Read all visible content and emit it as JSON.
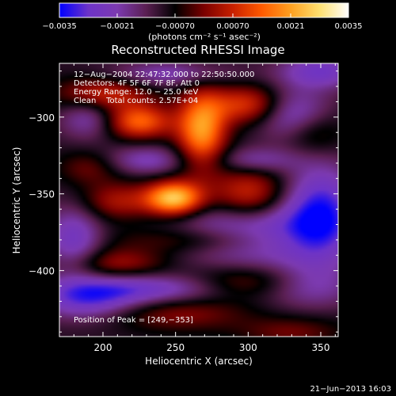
{
  "chart_data": {
    "type": "heatmap",
    "title": "Reconstructed RHESSI Image",
    "xlabel": "Heliocentric X (arcsec)",
    "ylabel": "Heliocentric Y (arcsec)",
    "xlim": [
      170,
      362
    ],
    "ylim": [
      -443,
      -265
    ],
    "x_ticks": [
      200,
      250,
      300,
      350
    ],
    "y_ticks": [
      -300,
      -350,
      -400
    ],
    "x_tick_labels": [
      "200",
      "250",
      "300",
      "350"
    ],
    "y_tick_labels": [
      "−300",
      "−350",
      "−400"
    ],
    "colorbar": {
      "range": [
        -0.0035,
        0.0035
      ],
      "ticks": [
        -0.0035,
        -0.0021,
        -0.0007,
        0.0007,
        0.0021,
        0.0035
      ],
      "tick_labels": [
        "−0.0035",
        "−0.0021",
        "−0.00070",
        "0.00070",
        "0.0021",
        "0.0035"
      ],
      "unit": "(photons cm⁻² s⁻¹ asec⁻²)",
      "colormap": [
        "#0000ff",
        "#6d33c8",
        "#7c3ab0",
        "#5a1f52",
        "#000000",
        "#7a0000",
        "#c82000",
        "#ff5a00",
        "#ffa020",
        "#ffe070",
        "#ffffff"
      ]
    },
    "annotations": [
      "12−Aug−2004 22:47:32.000 to 22:50:50.000",
      "Detectors: 4F 5F 6F 7F 8F, Att 0",
      "Energy Range: 12.0 − 25.0 keV",
      "Clean    Total counts: 2.57E+04"
    ],
    "peak_label": "Position of Peak = [249,−353]",
    "peak": [
      249,
      -353
    ],
    "timestamp": "21−Jun−2013 16:03",
    "components": [
      {
        "x": 249,
        "y": -353,
        "sx": 14,
        "sy": 8,
        "amp": 0.0036
      },
      {
        "x": 268,
        "y": -308,
        "sx": 12,
        "sy": 18,
        "amp": 0.003
      },
      {
        "x": 225,
        "y": -303,
        "sx": 16,
        "sy": 8,
        "amp": 0.0024
      },
      {
        "x": 300,
        "y": -292,
        "sx": 18,
        "sy": 9,
        "amp": 0.002
      },
      {
        "x": 200,
        "y": -285,
        "sx": 22,
        "sy": 8,
        "amp": 0.0018
      },
      {
        "x": 300,
        "y": -350,
        "sx": 18,
        "sy": 12,
        "amp": 0.0018
      },
      {
        "x": 210,
        "y": -355,
        "sx": 18,
        "sy": 9,
        "amp": 0.0014
      },
      {
        "x": 270,
        "y": -380,
        "sx": 40,
        "sy": 7,
        "amp": 0.0014
      },
      {
        "x": 210,
        "y": -395,
        "sx": 25,
        "sy": 7,
        "amp": 0.0013
      },
      {
        "x": 300,
        "y": -408,
        "sx": 30,
        "sy": 8,
        "amp": 0.0014
      },
      {
        "x": 250,
        "y": -428,
        "sx": 35,
        "sy": 8,
        "amp": 0.0011
      },
      {
        "x": 190,
        "y": -333,
        "sx": 15,
        "sy": 8,
        "amp": 0.0009
      },
      {
        "x": 345,
        "y": -310,
        "sx": 15,
        "sy": 10,
        "amp": 0.001
      },
      {
        "x": 330,
        "y": -440,
        "sx": 25,
        "sy": 7,
        "amp": 0.0009
      },
      {
        "x": 300,
        "y": -377,
        "sx": 40,
        "sy": 14,
        "amp": -0.002
      },
      {
        "x": 350,
        "y": -362,
        "sx": 18,
        "sy": 22,
        "amp": -0.0022
      },
      {
        "x": 230,
        "y": -412,
        "sx": 45,
        "sy": 7,
        "amp": -0.0016
      },
      {
        "x": 190,
        "y": -420,
        "sx": 25,
        "sy": 9,
        "amp": -0.0016
      },
      {
        "x": 180,
        "y": -380,
        "sx": 14,
        "sy": 16,
        "amp": -0.0016
      },
      {
        "x": 330,
        "y": -298,
        "sx": 18,
        "sy": 12,
        "amp": -0.0016
      },
      {
        "x": 350,
        "y": -270,
        "sx": 20,
        "sy": 8,
        "amp": -0.0016
      },
      {
        "x": 190,
        "y": -300,
        "sx": 14,
        "sy": 10,
        "amp": -0.0012
      },
      {
        "x": 230,
        "y": -328,
        "sx": 20,
        "sy": 7,
        "amp": -0.0012
      },
      {
        "x": 245,
        "y": -272,
        "sx": 30,
        "sy": 6,
        "amp": -0.0012
      },
      {
        "x": 305,
        "y": -328,
        "sx": 20,
        "sy": 6,
        "amp": -0.0011
      },
      {
        "x": 340,
        "y": -410,
        "sx": 25,
        "sy": 10,
        "amp": -0.0012
      }
    ]
  }
}
